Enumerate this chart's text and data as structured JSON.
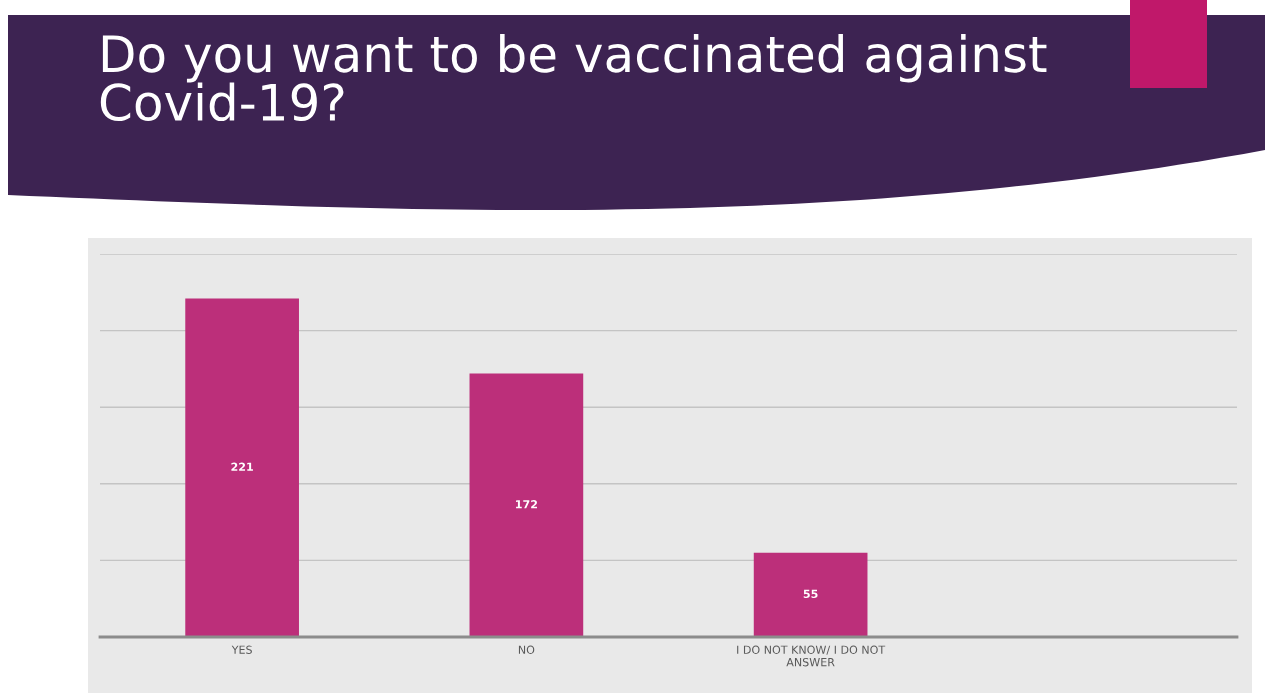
{
  "chart_data": {
    "type": "bar",
    "title": "Do you want to be vaccinated against\nCovid-19?",
    "categories": [
      "YES",
      "NO",
      "I DO NOT KNOW/ I DO NOT\nANSWER",
      null
    ],
    "values": [
      221,
      172,
      55,
      null
    ],
    "color": "#bc2f7a",
    "ylim": [
      0,
      250
    ],
    "yticks": [
      {
        "value": 0,
        "label": null
      },
      {
        "value": 50,
        "label": null
      },
      {
        "value": 100,
        "label": null
      },
      {
        "value": 150,
        "label": null
      },
      {
        "value": 200,
        "label": null
      },
      {
        "value": 250,
        "label": null
      }
    ],
    "grid": "y",
    "tick_labels": "x",
    "data_labels": true
  }
}
